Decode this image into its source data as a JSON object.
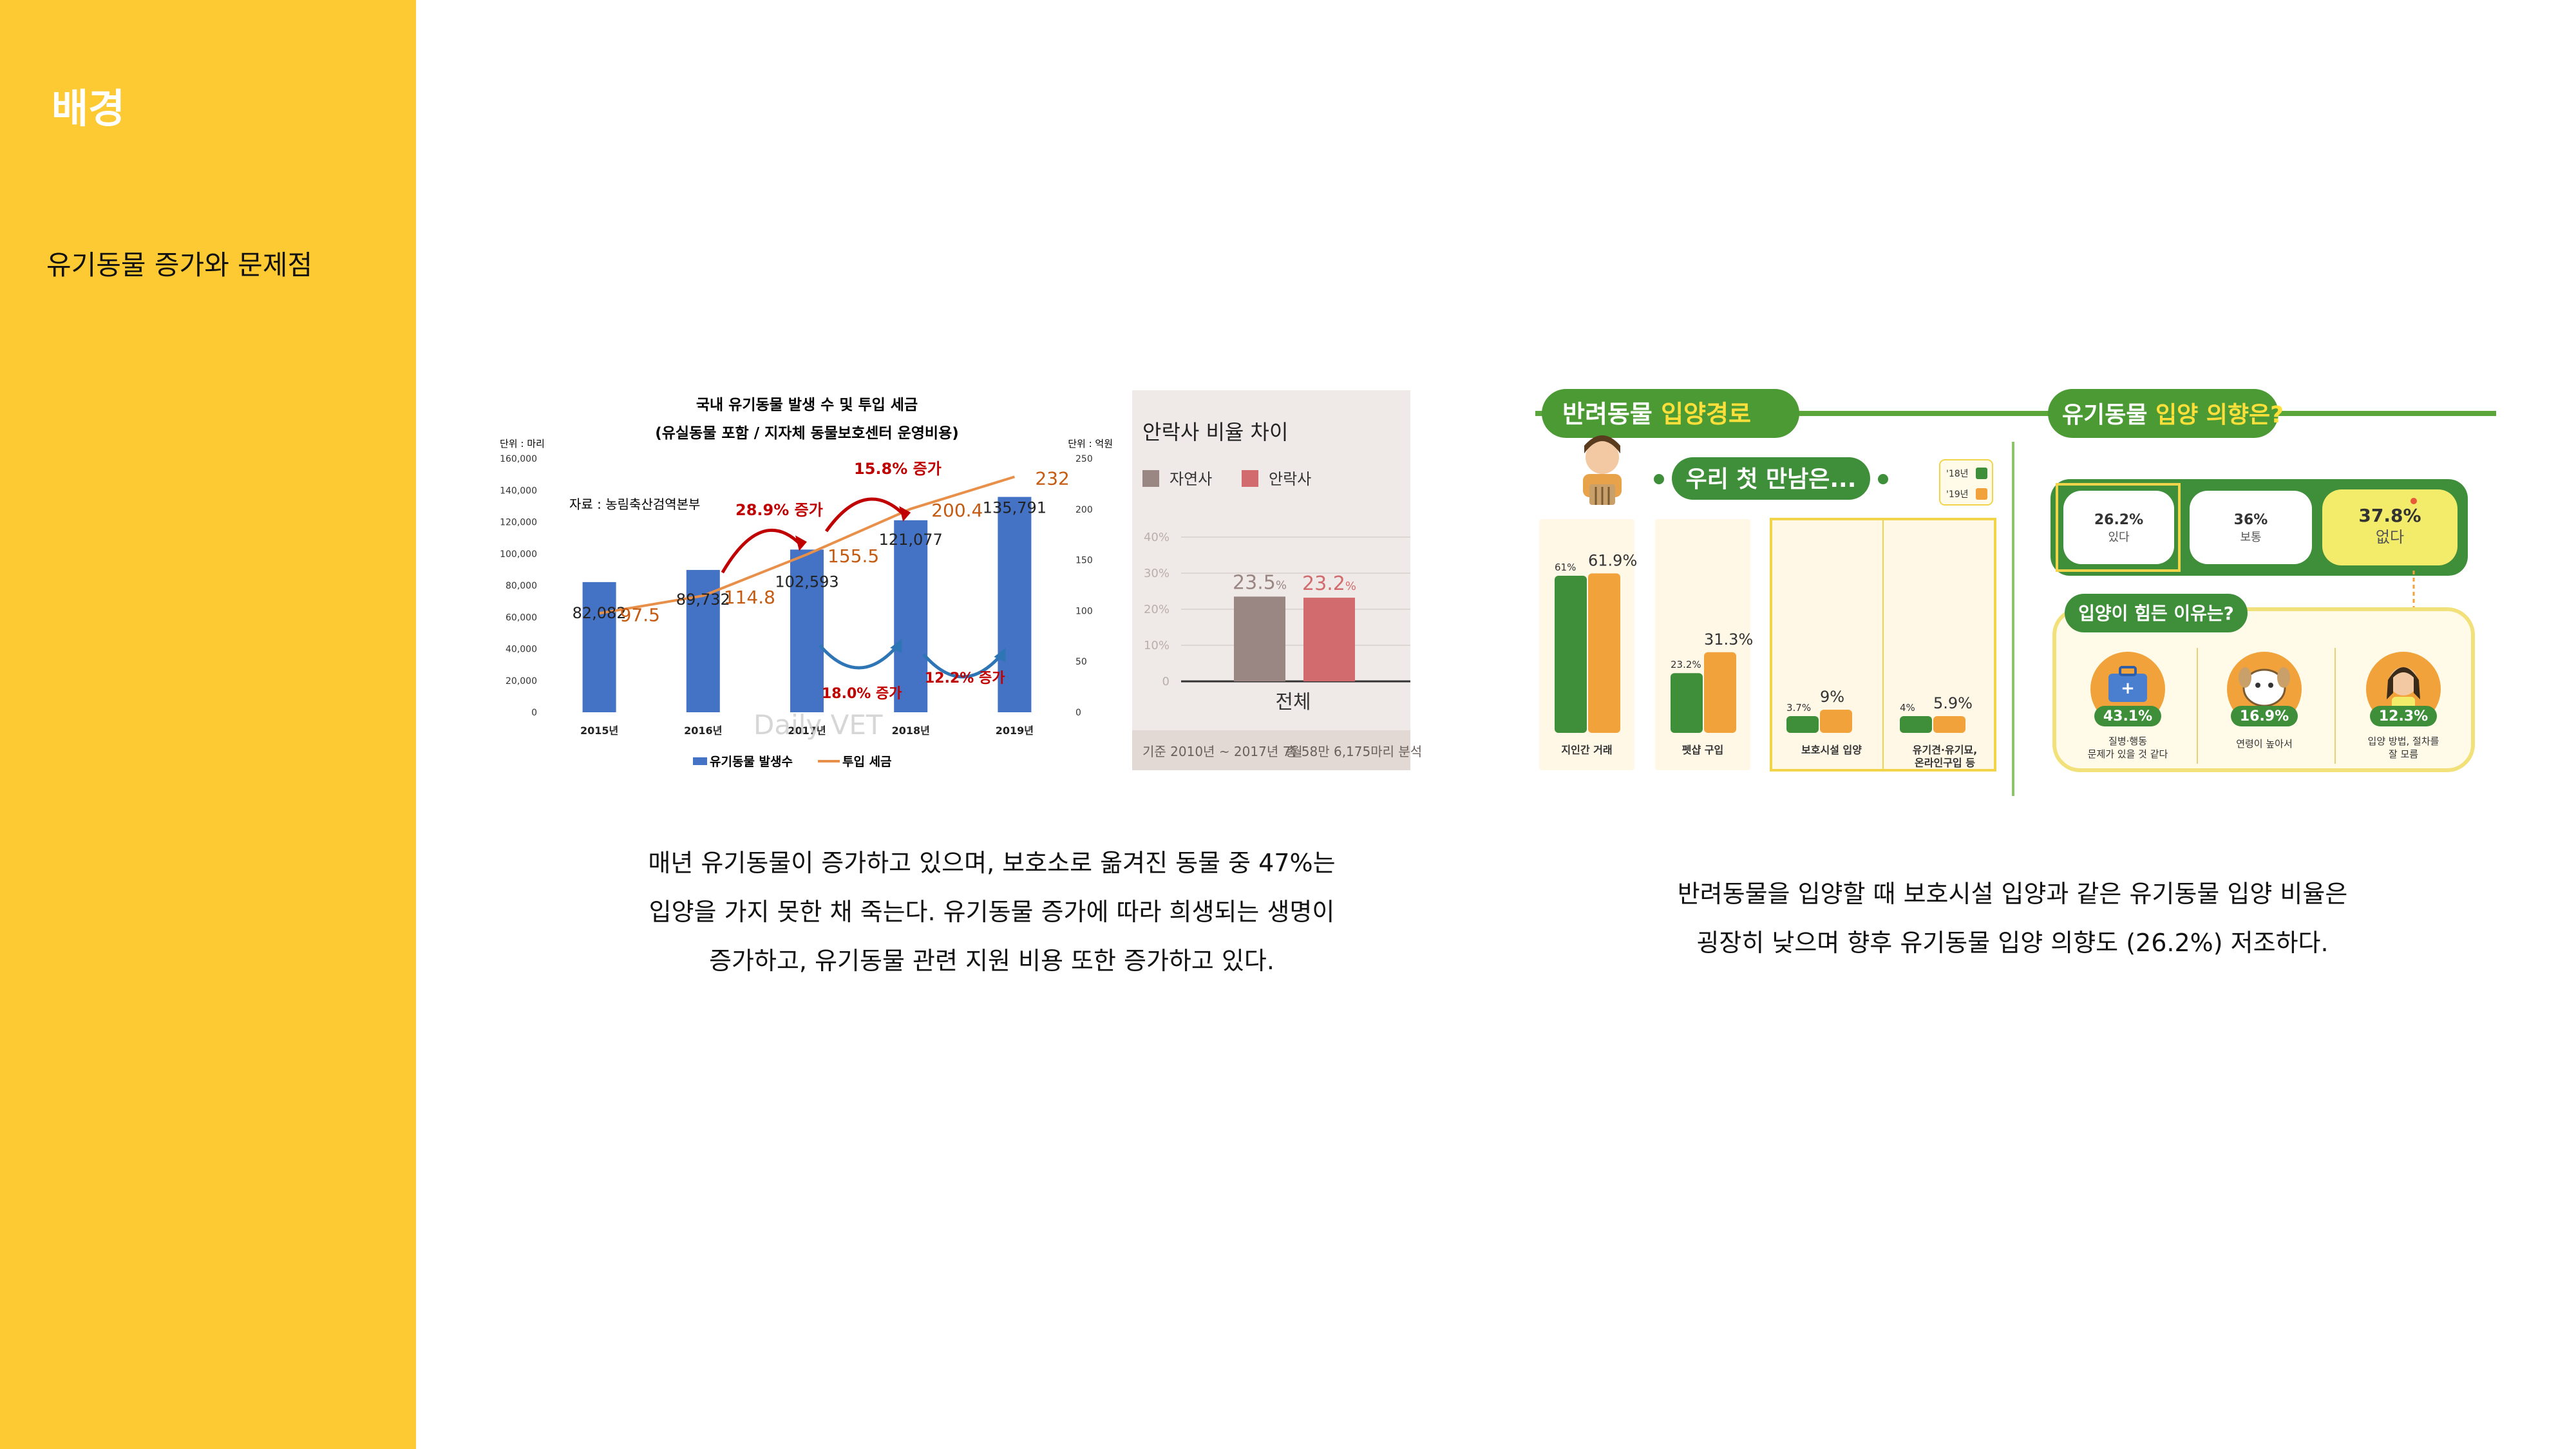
{
  "sidebar": {
    "title": "배경",
    "subtitle": "유기동물 증가와 문제점"
  },
  "chart1": {
    "title_line1": "국내 유기동물 발생 수 및 투입 세금",
    "title_line2": "(유실동물 포함 / 지자체 동물보호센터 운영비용)",
    "left_unit": "단위 : 마리",
    "right_unit": "단위 : 억원",
    "source": "자료 : 농림축산검역본부",
    "watermark": "Daily VET",
    "legend_bar": "유기동물 발생수",
    "legend_line": "투입 세금",
    "colors": {
      "bar": "#4472c4",
      "line": "#e8904a",
      "line_label": "#c55a11",
      "annotation": "#c00000",
      "arrow_red": "#c00000",
      "arrow_blue": "#2e75b6"
    },
    "chart_data": {
      "type": "bar",
      "categories": [
        "2015년",
        "2016년",
        "2017년",
        "2018년",
        "2019년"
      ],
      "series": [
        {
          "name": "유기동물 발생수",
          "values": [
            82082,
            89732,
            102593,
            121077,
            135791
          ]
        },
        {
          "name": "투입 세금",
          "values": [
            97.5,
            114.8,
            155.5,
            200.4,
            232
          ]
        }
      ],
      "bar_labels": [
        "82,082",
        "89,732",
        "102,593",
        "121,077",
        "135,791"
      ],
      "line_labels": [
        "97.5",
        "114.8",
        "155.5",
        "200.4",
        "232"
      ],
      "ylim_left": [
        0,
        160000
      ],
      "ylim_right": [
        0,
        250
      ],
      "left_ticks": [
        "0",
        "20,000",
        "40,000",
        "60,000",
        "80,000",
        "100,000",
        "120,000",
        "140,000",
        "160,000"
      ],
      "right_ticks": [
        "0",
        "50",
        "100",
        "150",
        "200",
        "250"
      ],
      "annotations_up": [
        "28.9% 증가",
        "15.8% 증가"
      ],
      "annotations_down": [
        "18.0% 증가",
        "12.2% 증가"
      ]
    }
  },
  "chart2": {
    "title": "안락사 비율 차이",
    "legend": [
      "자연사",
      "안락사"
    ],
    "colors": {
      "natural": "#9a8683",
      "euthanasia": "#d26b6e",
      "bg": "#efeae7",
      "footer_bg": "#e2d9d5"
    },
    "footer_left": "기준 2010년 ~ 2017년 7월",
    "footer_right": "총 58만 6,175마리 분석",
    "chart_data": {
      "type": "bar",
      "categories": [
        "전체"
      ],
      "series": [
        {
          "name": "자연사",
          "values": [
            23.5
          ]
        },
        {
          "name": "안락사",
          "values": [
            23.2
          ]
        }
      ],
      "value_labels": [
        "23.5",
        "23.2"
      ],
      "unit": "%",
      "ticks": [
        "0",
        "10%",
        "20%",
        "30%",
        "40%"
      ],
      "ylim": [
        0,
        40
      ]
    }
  },
  "info": {
    "left_header": "반려동물 입양경로",
    "left_header_plain": "반려동물 ",
    "left_header_hl": "입양경로",
    "first_meet": "우리 첫 만남은...",
    "legend": [
      "'18년",
      "'19년"
    ],
    "colors": {
      "green": "#3f8f3a",
      "orange": "#f2a23a",
      "yellow_box": "#f2d44a",
      "cream": "#fff8e6"
    },
    "chart_data": {
      "type": "bar",
      "categories": [
        "지인간 거래",
        "펫샵 구입",
        "보호시설 입양",
        "유기견 유기묘, 온라인구입 등"
      ],
      "series": [
        {
          "name": "'18년",
          "values": [
            61,
            23.2,
            3.7,
            4
          ]
        },
        {
          "name": "'19년",
          "values": [
            61.9,
            31.3,
            9,
            5.9
          ]
        }
      ],
      "labels_18": [
        "61%",
        "23.2%",
        "3.7%",
        "4%"
      ],
      "labels_19": [
        "61.9%",
        "31.3%",
        "9%",
        "5.9%"
      ]
    },
    "cat_lines": [
      [
        "지인간 거래"
      ],
      [
        "펫샵 구입"
      ],
      [
        "보호시설 입양"
      ],
      [
        "유기견·유기묘,",
        "온라인구입 등"
      ]
    ],
    "right_header_plain": "유기동물 ",
    "right_header_hl": "입양 의향은?",
    "intention": [
      {
        "value": "26.2%",
        "label": "있다"
      },
      {
        "value": "36%",
        "label": "보통"
      },
      {
        "value": "37.8%",
        "label": "없다"
      }
    ],
    "reason_title": "입양이 힘든 이유는?",
    "reasons": [
      {
        "value": "43.1%",
        "lines": [
          "질병·행동",
          "문제가 있을 것 같다"
        ]
      },
      {
        "value": "16.9%",
        "lines": [
          "연령이 높아서"
        ]
      },
      {
        "value": "12.3%",
        "lines": [
          "입양 방법, 절차를",
          "잘 모름"
        ]
      }
    ]
  },
  "paragraphs": {
    "p1_l1": "매년 유기동물이 증가하고 있으며, 보호소로 옮겨진 동물 중 47%는",
    "p1_l2": "입양을 가지 못한 채 죽는다. 유기동물 증가에 따라 희생되는 생명이",
    "p1_l3": "증가하고, 유기동물 관련 지원 비용 또한 증가하고 있다.",
    "p2_l1": "반려동물을 입양할 때 보호시설 입양과 같은 유기동물 입양 비율은",
    "p2_l2": "굉장히 낮으며 향후 유기동물 입양 의향도 (26.2%) 저조하다."
  }
}
